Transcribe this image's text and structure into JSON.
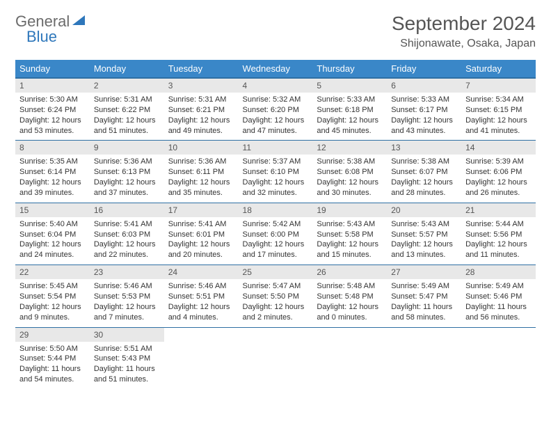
{
  "logo": {
    "text1": "General",
    "text2": "Blue"
  },
  "header": {
    "title": "September 2024",
    "location": "Shijonawate, Osaka, Japan"
  },
  "colors": {
    "header_bg": "#3a87c8",
    "header_border": "#2e6fa3",
    "daynum_bg": "#e8e8e8",
    "text": "#333333",
    "title_text": "#555555"
  },
  "weekdays": [
    "Sunday",
    "Monday",
    "Tuesday",
    "Wednesday",
    "Thursday",
    "Friday",
    "Saturday"
  ],
  "days": [
    {
      "n": 1,
      "sunrise": "5:30 AM",
      "sunset": "6:24 PM",
      "daylight": "12 hours and 53 minutes."
    },
    {
      "n": 2,
      "sunrise": "5:31 AM",
      "sunset": "6:22 PM",
      "daylight": "12 hours and 51 minutes."
    },
    {
      "n": 3,
      "sunrise": "5:31 AM",
      "sunset": "6:21 PM",
      "daylight": "12 hours and 49 minutes."
    },
    {
      "n": 4,
      "sunrise": "5:32 AM",
      "sunset": "6:20 PM",
      "daylight": "12 hours and 47 minutes."
    },
    {
      "n": 5,
      "sunrise": "5:33 AM",
      "sunset": "6:18 PM",
      "daylight": "12 hours and 45 minutes."
    },
    {
      "n": 6,
      "sunrise": "5:33 AM",
      "sunset": "6:17 PM",
      "daylight": "12 hours and 43 minutes."
    },
    {
      "n": 7,
      "sunrise": "5:34 AM",
      "sunset": "6:15 PM",
      "daylight": "12 hours and 41 minutes."
    },
    {
      "n": 8,
      "sunrise": "5:35 AM",
      "sunset": "6:14 PM",
      "daylight": "12 hours and 39 minutes."
    },
    {
      "n": 9,
      "sunrise": "5:36 AM",
      "sunset": "6:13 PM",
      "daylight": "12 hours and 37 minutes."
    },
    {
      "n": 10,
      "sunrise": "5:36 AM",
      "sunset": "6:11 PM",
      "daylight": "12 hours and 35 minutes."
    },
    {
      "n": 11,
      "sunrise": "5:37 AM",
      "sunset": "6:10 PM",
      "daylight": "12 hours and 32 minutes."
    },
    {
      "n": 12,
      "sunrise": "5:38 AM",
      "sunset": "6:08 PM",
      "daylight": "12 hours and 30 minutes."
    },
    {
      "n": 13,
      "sunrise": "5:38 AM",
      "sunset": "6:07 PM",
      "daylight": "12 hours and 28 minutes."
    },
    {
      "n": 14,
      "sunrise": "5:39 AM",
      "sunset": "6:06 PM",
      "daylight": "12 hours and 26 minutes."
    },
    {
      "n": 15,
      "sunrise": "5:40 AM",
      "sunset": "6:04 PM",
      "daylight": "12 hours and 24 minutes."
    },
    {
      "n": 16,
      "sunrise": "5:41 AM",
      "sunset": "6:03 PM",
      "daylight": "12 hours and 22 minutes."
    },
    {
      "n": 17,
      "sunrise": "5:41 AM",
      "sunset": "6:01 PM",
      "daylight": "12 hours and 20 minutes."
    },
    {
      "n": 18,
      "sunrise": "5:42 AM",
      "sunset": "6:00 PM",
      "daylight": "12 hours and 17 minutes."
    },
    {
      "n": 19,
      "sunrise": "5:43 AM",
      "sunset": "5:58 PM",
      "daylight": "12 hours and 15 minutes."
    },
    {
      "n": 20,
      "sunrise": "5:43 AM",
      "sunset": "5:57 PM",
      "daylight": "12 hours and 13 minutes."
    },
    {
      "n": 21,
      "sunrise": "5:44 AM",
      "sunset": "5:56 PM",
      "daylight": "12 hours and 11 minutes."
    },
    {
      "n": 22,
      "sunrise": "5:45 AM",
      "sunset": "5:54 PM",
      "daylight": "12 hours and 9 minutes."
    },
    {
      "n": 23,
      "sunrise": "5:46 AM",
      "sunset": "5:53 PM",
      "daylight": "12 hours and 7 minutes."
    },
    {
      "n": 24,
      "sunrise": "5:46 AM",
      "sunset": "5:51 PM",
      "daylight": "12 hours and 4 minutes."
    },
    {
      "n": 25,
      "sunrise": "5:47 AM",
      "sunset": "5:50 PM",
      "daylight": "12 hours and 2 minutes."
    },
    {
      "n": 26,
      "sunrise": "5:48 AM",
      "sunset": "5:48 PM",
      "daylight": "12 hours and 0 minutes."
    },
    {
      "n": 27,
      "sunrise": "5:49 AM",
      "sunset": "5:47 PM",
      "daylight": "11 hours and 58 minutes."
    },
    {
      "n": 28,
      "sunrise": "5:49 AM",
      "sunset": "5:46 PM",
      "daylight": "11 hours and 56 minutes."
    },
    {
      "n": 29,
      "sunrise": "5:50 AM",
      "sunset": "5:44 PM",
      "daylight": "11 hours and 54 minutes."
    },
    {
      "n": 30,
      "sunrise": "5:51 AM",
      "sunset": "5:43 PM",
      "daylight": "11 hours and 51 minutes."
    }
  ],
  "labels": {
    "sunrise": "Sunrise: ",
    "sunset": "Sunset: ",
    "daylight": "Daylight: "
  },
  "layout": {
    "start_weekday": 0,
    "total_cells": 35
  }
}
